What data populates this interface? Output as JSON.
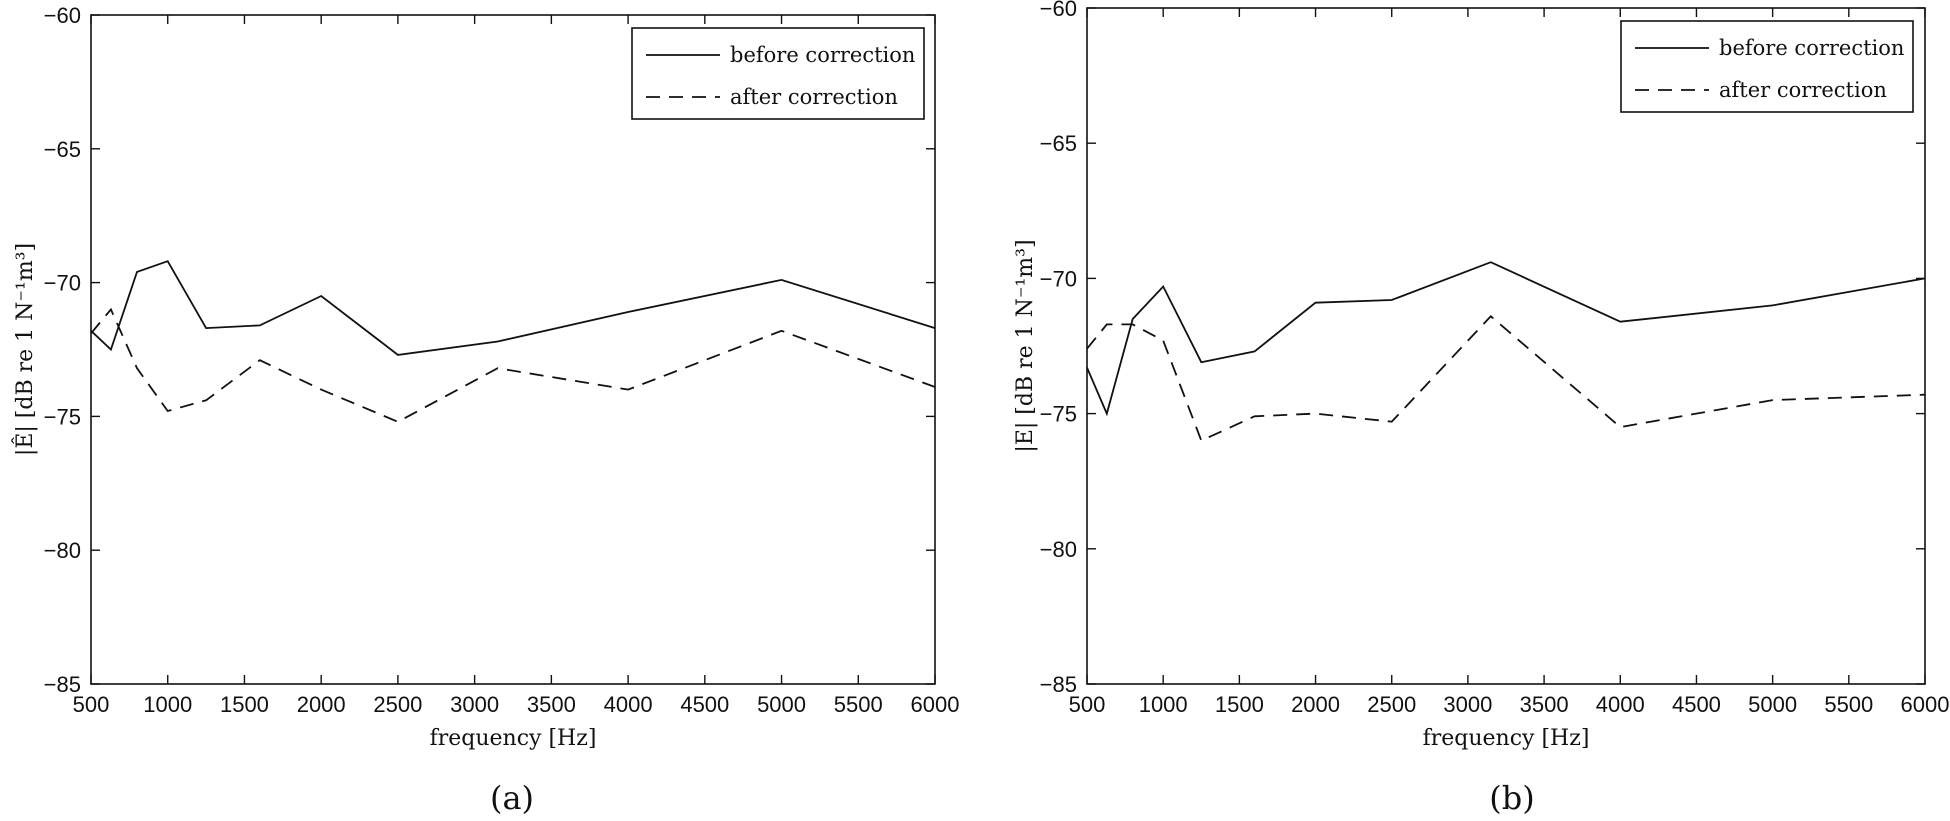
{
  "chart_data": [
    {
      "type": "line",
      "panel_label": "(a)",
      "xlabel": "frequency [Hz]",
      "ylabel": "|Ê| [dB re 1 N⁻¹m³]",
      "xlim": [
        500,
        6000
      ],
      "ylim": [
        -85,
        -60
      ],
      "xticks": [
        500,
        1000,
        1500,
        2000,
        2500,
        3000,
        3500,
        4000,
        4500,
        5000,
        5500,
        6000
      ],
      "yticks": [
        -85,
        -80,
        -75,
        -70,
        -65,
        -60
      ],
      "grid": false,
      "legend_position": "top-right",
      "series": [
        {
          "name": "before correction",
          "style": "solid",
          "x": [
            500,
            630,
            800,
            1000,
            1250,
            1600,
            2000,
            2500,
            3150,
            4000,
            5000,
            6000
          ],
          "y": [
            -71.8,
            -72.5,
            -69.6,
            -69.2,
            -71.7,
            -71.6,
            -70.5,
            -72.7,
            -72.2,
            -71.1,
            -69.9,
            -71.7
          ]
        },
        {
          "name": "after correction",
          "style": "dashed",
          "x": [
            500,
            630,
            800,
            1000,
            1250,
            1600,
            2000,
            2500,
            3150,
            4000,
            5000,
            6000
          ],
          "y": [
            -71.9,
            -71.0,
            -73.2,
            -74.8,
            -74.4,
            -72.9,
            -74.0,
            -75.2,
            -73.2,
            -74.0,
            -71.8,
            -73.9
          ]
        }
      ]
    },
    {
      "type": "line",
      "panel_label": "(b)",
      "xlabel": "frequency [Hz]",
      "ylabel": "|E| [dB re 1 N⁻¹m³]",
      "xlim": [
        500,
        6000
      ],
      "ylim": [
        -85,
        -60
      ],
      "xticks": [
        500,
        1000,
        1500,
        2000,
        2500,
        3000,
        3500,
        4000,
        4500,
        5000,
        5500,
        6000
      ],
      "yticks": [
        -85,
        -80,
        -75,
        -70,
        -65,
        -60
      ],
      "grid": false,
      "legend_position": "top-right",
      "series": [
        {
          "name": "before correction",
          "style": "solid",
          "x": [
            500,
            630,
            800,
            1000,
            1250,
            1600,
            2000,
            2500,
            3150,
            4000,
            5000,
            6000
          ],
          "y": [
            -73.3,
            -75.0,
            -71.5,
            -70.3,
            -73.1,
            -72.7,
            -70.9,
            -70.8,
            -69.4,
            -71.6,
            -71.0,
            -70.0
          ]
        },
        {
          "name": "after correction",
          "style": "dashed",
          "x": [
            500,
            630,
            800,
            1000,
            1250,
            1600,
            2000,
            2500,
            3150,
            4000,
            5000,
            6000
          ],
          "y": [
            -72.6,
            -71.7,
            -71.7,
            -72.3,
            -76.0,
            -75.1,
            -75.0,
            -75.3,
            -71.4,
            -75.5,
            -74.5,
            -74.3
          ]
        }
      ]
    }
  ]
}
